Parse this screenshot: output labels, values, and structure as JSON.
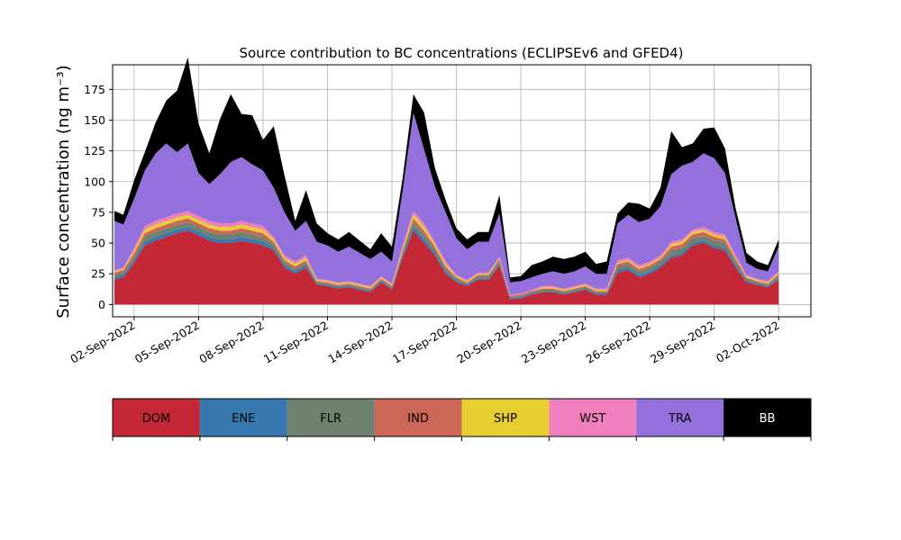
{
  "chart_data": {
    "type": "area",
    "stacked": true,
    "title": "Source contribution to BC concentrations (ECLIPSEv6 and GFED4)",
    "xlabel": "",
    "ylabel": "Surface concentration (ng m⁻³)",
    "ylim": [
      -10,
      195
    ],
    "yticks": [
      0,
      25,
      50,
      75,
      100,
      125,
      150,
      175
    ],
    "xlim": [
      "2022-09-01T00:00",
      "2022-10-03T12:00"
    ],
    "xticks": [
      "02-Sep-2022",
      "05-Sep-2022",
      "08-Sep-2022",
      "11-Sep-2022",
      "14-Sep-2022",
      "17-Sep-2022",
      "20-Sep-2022",
      "23-Sep-2022",
      "26-Sep-2022",
      "29-Sep-2022",
      "02-Oct-2022"
    ],
    "grid": true,
    "x": [
      "2022-09-01T02:00",
      "2022-09-01T12:00",
      "2022-09-02T00:00",
      "2022-09-02T12:00",
      "2022-09-03T00:00",
      "2022-09-03T12:00",
      "2022-09-04T00:00",
      "2022-09-04T12:00",
      "2022-09-05T00:00",
      "2022-09-05T12:00",
      "2022-09-06T00:00",
      "2022-09-06T12:00",
      "2022-09-07T00:00",
      "2022-09-07T12:00",
      "2022-09-08T00:00",
      "2022-09-08T12:00",
      "2022-09-09T00:00",
      "2022-09-09T12:00",
      "2022-09-10T00:00",
      "2022-09-10T12:00",
      "2022-09-11T00:00",
      "2022-09-11T12:00",
      "2022-09-12T00:00",
      "2022-09-12T12:00",
      "2022-09-13T00:00",
      "2022-09-13T12:00",
      "2022-09-14T00:00",
      "2022-09-14T12:00",
      "2022-09-15T00:00",
      "2022-09-15T12:00",
      "2022-09-16T00:00",
      "2022-09-16T12:00",
      "2022-09-17T00:00",
      "2022-09-17T12:00",
      "2022-09-18T00:00",
      "2022-09-18T12:00",
      "2022-09-19T00:00",
      "2022-09-19T12:00",
      "2022-09-20T00:00",
      "2022-09-20T12:00",
      "2022-09-21T00:00",
      "2022-09-21T12:00",
      "2022-09-22T00:00",
      "2022-09-22T12:00",
      "2022-09-23T00:00",
      "2022-09-23T12:00",
      "2022-09-24T00:00",
      "2022-09-24T12:00",
      "2022-09-25T00:00",
      "2022-09-25T12:00",
      "2022-09-26T00:00",
      "2022-09-26T12:00",
      "2022-09-27T00:00",
      "2022-09-27T12:00",
      "2022-09-28T00:00",
      "2022-09-28T12:00",
      "2022-09-29T00:00",
      "2022-09-29T12:00",
      "2022-09-30T00:00",
      "2022-09-30T12:00",
      "2022-10-01T00:00",
      "2022-10-01T12:00",
      "2022-10-02T00:00"
    ],
    "series": [
      {
        "name": "DOM",
        "color": "#c42836",
        "values": [
          20,
          22,
          34,
          48,
          52,
          55,
          58,
          60,
          56,
          52,
          50,
          50,
          52,
          50,
          48,
          44,
          30,
          25,
          30,
          16,
          15,
          13,
          14,
          12,
          10,
          18,
          12,
          38,
          60,
          50,
          40,
          25,
          18,
          15,
          20,
          20,
          32,
          4,
          5,
          8,
          10,
          10,
          8,
          10,
          12,
          8,
          8,
          26,
          28,
          22,
          25,
          30,
          38,
          40,
          48,
          50,
          46,
          44,
          30,
          18,
          16,
          14,
          20
        ]
      },
      {
        "name": "ENE",
        "color": "#3778b0",
        "values": [
          2,
          2,
          2,
          3,
          3,
          3,
          3,
          3,
          3,
          3,
          3,
          3,
          3,
          3,
          3,
          2,
          2,
          2,
          2,
          1,
          1,
          1,
          1,
          1,
          1,
          1,
          1,
          2,
          3,
          3,
          2,
          2,
          1,
          1,
          1,
          1,
          1,
          1,
          1,
          1,
          1,
          1,
          1,
          1,
          1,
          1,
          1,
          2,
          2,
          2,
          2,
          2,
          2,
          2,
          2,
          2,
          2,
          2,
          2,
          1,
          1,
          1,
          1
        ]
      },
      {
        "name": "FLR",
        "color": "#6e8270",
        "values": [
          2,
          2,
          3,
          4,
          4,
          4,
          4,
          4,
          4,
          4,
          4,
          4,
          4,
          4,
          4,
          3,
          2,
          2,
          2,
          1,
          1,
          1,
          1,
          1,
          1,
          1,
          1,
          2,
          4,
          4,
          3,
          2,
          2,
          1,
          2,
          2,
          2,
          1,
          1,
          1,
          1,
          1,
          1,
          1,
          1,
          1,
          1,
          3,
          3,
          3,
          3,
          3,
          4,
          4,
          4,
          4,
          4,
          4,
          3,
          2,
          1,
          1,
          2
        ]
      },
      {
        "name": "IND",
        "color": "#cc6657",
        "values": [
          2,
          2,
          3,
          3,
          3,
          3,
          3,
          3,
          3,
          3,
          3,
          3,
          3,
          3,
          3,
          2,
          2,
          2,
          2,
          1,
          1,
          1,
          1,
          1,
          1,
          1,
          1,
          2,
          3,
          3,
          2,
          2,
          1,
          1,
          1,
          1,
          2,
          1,
          1,
          1,
          1,
          1,
          1,
          1,
          1,
          1,
          1,
          2,
          2,
          2,
          2,
          2,
          3,
          3,
          3,
          3,
          3,
          3,
          2,
          1,
          1,
          1,
          2
        ]
      },
      {
        "name": "SHP",
        "color": "#e6ce32",
        "values": [
          1,
          1,
          2,
          3,
          3,
          3,
          3,
          3,
          3,
          3,
          3,
          3,
          3,
          3,
          3,
          2,
          2,
          2,
          2,
          1,
          1,
          1,
          1,
          1,
          1,
          1,
          1,
          2,
          3,
          3,
          2,
          2,
          1,
          1,
          1,
          1,
          1,
          0,
          0,
          0,
          1,
          1,
          1,
          1,
          1,
          1,
          1,
          1,
          1,
          1,
          1,
          1,
          2,
          2,
          2,
          2,
          2,
          2,
          1,
          1,
          1,
          1,
          1
        ]
      },
      {
        "name": "WST",
        "color": "#f07fbe",
        "values": [
          1,
          1,
          2,
          3,
          3,
          3,
          3,
          3,
          3,
          3,
          3,
          3,
          3,
          3,
          3,
          2,
          2,
          2,
          2,
          1,
          1,
          1,
          1,
          1,
          1,
          1,
          1,
          2,
          3,
          3,
          2,
          2,
          1,
          1,
          1,
          1,
          1,
          1,
          1,
          1,
          1,
          1,
          1,
          1,
          1,
          1,
          1,
          2,
          2,
          2,
          2,
          2,
          2,
          2,
          2,
          2,
          2,
          2,
          2,
          1,
          1,
          1,
          1
        ]
      },
      {
        "name": "TRA",
        "color": "#9370db",
        "values": [
          40,
          35,
          40,
          45,
          55,
          60,
          50,
          55,
          35,
          30,
          40,
          50,
          52,
          48,
          45,
          40,
          35,
          25,
          28,
          30,
          28,
          25,
          28,
          25,
          22,
          20,
          18,
          45,
          80,
          60,
          45,
          40,
          30,
          25,
          25,
          25,
          35,
          10,
          10,
          10,
          10,
          12,
          12,
          12,
          14,
          12,
          12,
          30,
          35,
          35,
          35,
          40,
          55,
          60,
          55,
          60,
          60,
          50,
          30,
          10,
          8,
          8,
          20
        ]
      },
      {
        "name": "BB",
        "color": "#000000",
        "values": [
          8,
          8,
          15,
          15,
          25,
          35,
          50,
          70,
          40,
          25,
          45,
          55,
          35,
          40,
          25,
          50,
          30,
          8,
          25,
          15,
          10,
          10,
          12,
          10,
          8,
          15,
          12,
          10,
          15,
          30,
          15,
          10,
          8,
          8,
          8,
          8,
          15,
          4,
          4,
          10,
          10,
          12,
          12,
          12,
          12,
          8,
          10,
          8,
          10,
          15,
          8,
          15,
          35,
          15,
          15,
          20,
          25,
          20,
          8,
          8,
          6,
          5,
          6
        ]
      }
    ]
  }
}
